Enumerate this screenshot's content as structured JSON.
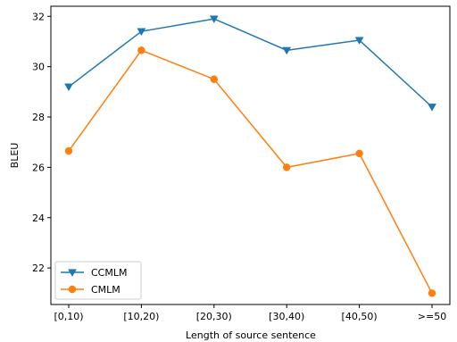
{
  "chart_data": {
    "type": "line",
    "categories": [
      "[0,10)",
      "[10,20)",
      "[20,30)",
      "[30,40)",
      "[40,50)",
      ">=50"
    ],
    "series": [
      {
        "name": "CCMLM",
        "values": [
          29.2,
          31.4,
          31.9,
          30.65,
          31.05,
          28.4
        ],
        "color": "#1f77b4",
        "marker": "triangle-down"
      },
      {
        "name": "CMLM",
        "values": [
          26.65,
          30.65,
          29.5,
          26.0,
          26.55,
          21.0
        ],
        "color": "#ff7f0e",
        "marker": "circle"
      }
    ],
    "xlabel": "Length of source sentence",
    "ylabel": "BLEU",
    "ylim": [
      20.55,
      32.4
    ],
    "yticks": [
      22,
      24,
      26,
      28,
      30,
      32
    ],
    "grid": false,
    "legend_position": "lower-left"
  }
}
